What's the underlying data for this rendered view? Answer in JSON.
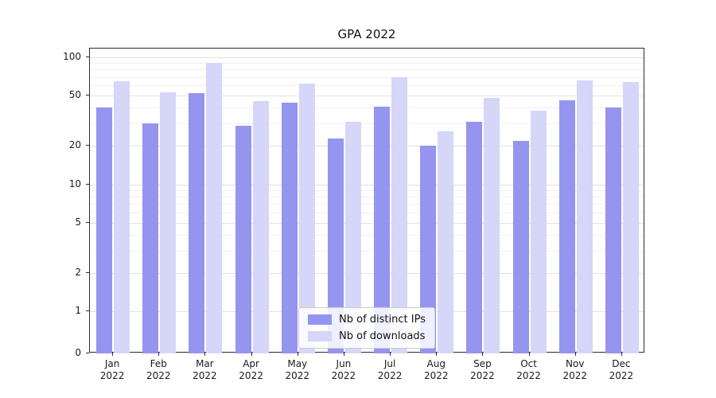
{
  "chart_data": {
    "type": "bar",
    "title": "GPA 2022",
    "xlabel": "",
    "ylabel": "",
    "yscale": "symlog",
    "yticks": [
      0,
      1,
      2,
      5,
      10,
      20,
      50,
      100
    ],
    "ylim": [
      0,
      110
    ],
    "grid": true,
    "legend_position": "lower center",
    "categories": [
      "Jan 2022",
      "Feb 2022",
      "Mar 2022",
      "Apr 2022",
      "May 2022",
      "Jun 2022",
      "Jul 2022",
      "Aug 2022",
      "Sep 2022",
      "Oct 2022",
      "Nov 2022",
      "Dec 2022"
    ],
    "series": [
      {
        "name": "Nb of distinct IPs",
        "color": "#9595ef",
        "values": [
          40,
          30,
          52,
          29,
          44,
          23,
          41,
          20,
          31,
          22,
          46,
          40
        ]
      },
      {
        "name": "Nb of downloads",
        "color": "#d6d6f8",
        "values": [
          65,
          53,
          90,
          45,
          62,
          31,
          70,
          26,
          48,
          38,
          66,
          64
        ]
      }
    ]
  }
}
